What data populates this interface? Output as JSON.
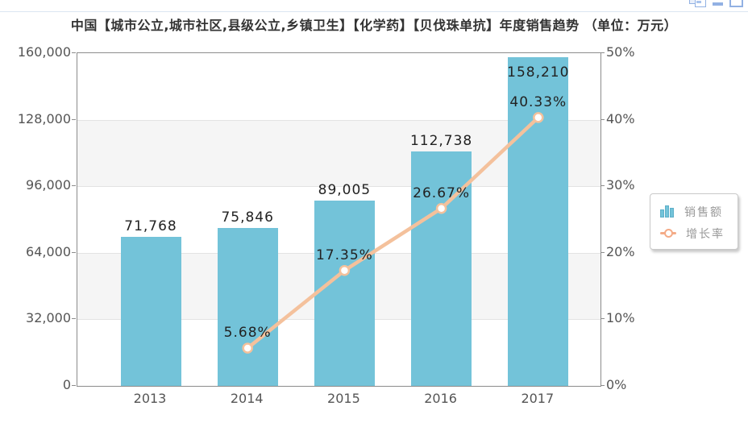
{
  "window": {
    "icons": [
      {
        "name": "restore-icon"
      },
      {
        "name": "minimize-icon"
      },
      {
        "name": "maximize-icon"
      }
    ]
  },
  "title": "中国【城市公立,城市社区,县级公立,乡镇卫生】【化学药】【贝伐珠单抗】年度销售趋势 （单位：万元）",
  "legend": {
    "items": [
      {
        "label": "销售额",
        "type": "bar"
      },
      {
        "label": "增长率",
        "type": "line"
      }
    ]
  },
  "chart_data": {
    "type": "bar+line",
    "title": "中国【城市公立,城市社区,县级公立,乡镇卫生】【化学药】【贝伐珠单抗】年度销售趋势 （单位：万元）",
    "categories": [
      "2013",
      "2014",
      "2015",
      "2016",
      "2017"
    ],
    "series": [
      {
        "name": "销售额",
        "type": "bar",
        "axis": "left",
        "values": [
          71768,
          75846,
          89005,
          112738,
          158210
        ],
        "labels": [
          "71,768",
          "75,846",
          "89,005",
          "112,738",
          "158,210"
        ],
        "color": "#73c3d9"
      },
      {
        "name": "增长率",
        "type": "line",
        "axis": "right",
        "values": [
          null,
          5.68,
          17.35,
          26.67,
          40.33
        ],
        "labels": [
          null,
          "5.68%",
          "17.35%",
          "26.67%",
          "40.33%"
        ],
        "color": "#f4c19c",
        "marker": "circle-white-fill"
      }
    ],
    "left_axis": {
      "min": 0,
      "max": 160000,
      "interval": 32000,
      "ticks": [
        "160,000",
        "128,000",
        "96,000",
        "64,000",
        "32,000",
        "0"
      ]
    },
    "right_axis": {
      "min": 0,
      "max": 50,
      "interval": 10,
      "ticks": [
        "50%",
        "40%",
        "30%",
        "20%",
        "10%",
        "0%"
      ]
    },
    "grid": "horizontal-lines-with-alternating-bands",
    "band_color": "#f5f5f5",
    "legend_position": "right"
  }
}
